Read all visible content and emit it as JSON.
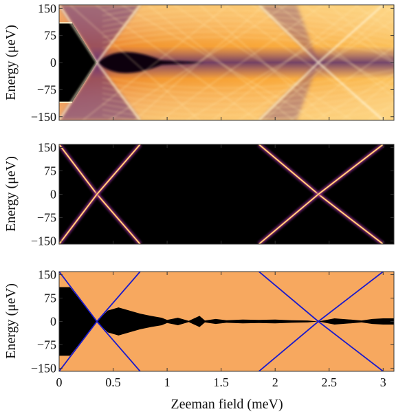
{
  "chart_data": [
    {
      "type": "heatmap",
      "panel": "top",
      "ylabel": "Energy (μeV)",
      "xlabel": "",
      "xlim": [
        0,
        3.1
      ],
      "ylim": [
        -160,
        160
      ],
      "yticks": [
        "150",
        "75",
        "0",
        "−75",
        "−150"
      ],
      "ytick_values": [
        150,
        75,
        0,
        -75,
        -150
      ],
      "xticks": [],
      "xtick_values": [
        0,
        0.5,
        1,
        1.5,
        2,
        2.5,
        3
      ],
      "colormap": [
        "#000000",
        "#3a1d66",
        "#8b3a8f",
        "#e0672a",
        "#fba035",
        "#fde8a8"
      ],
      "features": {
        "gap_edge_at_zero_field": 110,
        "gap_closing_fields": [
          0.35,
          2.4
        ],
        "crossing_lines": [
          {
            "from": [
              0.35,
              0
            ],
            "to": [
              0.75,
              160
            ]
          },
          {
            "from": [
              0.35,
              0
            ],
            "to": [
              0.75,
              -160
            ]
          },
          {
            "from": [
              0.0,
              160
            ],
            "to": [
              0.35,
              0
            ]
          },
          {
            "from": [
              0.0,
              -160
            ],
            "to": [
              0.35,
              0
            ]
          },
          {
            "from": [
              2.4,
              0
            ],
            "to": [
              3.0,
              160
            ]
          },
          {
            "from": [
              2.4,
              0
            ],
            "to": [
              3.0,
              -160
            ]
          },
          {
            "from": [
              1.85,
              160
            ],
            "to": [
              2.4,
              0
            ]
          },
          {
            "from": [
              1.85,
              -160
            ],
            "to": [
              2.4,
              0
            ]
          }
        ]
      }
    },
    {
      "type": "heatmap",
      "panel": "middle",
      "ylabel": "Energy (μeV)",
      "xlabel": "",
      "xlim": [
        0,
        3.1
      ],
      "ylim": [
        -160,
        160
      ],
      "yticks": [
        "150",
        "75",
        "0",
        "−75",
        "−150"
      ],
      "ytick_values": [
        150,
        75,
        0,
        -75,
        -150
      ],
      "xticks": [],
      "xtick_values": [
        0,
        0.5,
        1,
        1.5,
        2,
        2.5,
        3
      ],
      "colormap": [
        "#000000",
        "#7a2a8a",
        "#f08a3a",
        "#ffe6a0"
      ],
      "lines": [
        {
          "x": [
            0.0,
            0.35,
            0.75
          ],
          "y": [
            160,
            0,
            -160
          ]
        },
        {
          "x": [
            0.0,
            0.35,
            0.75
          ],
          "y": [
            -160,
            0,
            160
          ]
        },
        {
          "x": [
            1.85,
            2.4,
            3.0
          ],
          "y": [
            160,
            0,
            -160
          ]
        },
        {
          "x": [
            1.85,
            2.4,
            3.0
          ],
          "y": [
            -160,
            0,
            160
          ]
        }
      ]
    },
    {
      "type": "area",
      "panel": "bottom",
      "ylabel": "Energy (μeV)",
      "xlabel": "Zeeman field (meV)",
      "xlim": [
        0,
        3.1
      ],
      "ylim": [
        -160,
        160
      ],
      "yticks": [
        "150",
        "75",
        "0",
        "−75",
        "−150"
      ],
      "ytick_values": [
        150,
        75,
        0,
        -75,
        -150
      ],
      "xticks": [
        "0",
        "0.5",
        "1",
        "1.5",
        "2",
        "2.5",
        "3"
      ],
      "xtick_values": [
        0,
        0.5,
        1,
        1.5,
        2,
        2.5,
        3
      ],
      "background_color": "#f7a85f",
      "gap_color": "#000000",
      "line_color": "#1a1acc",
      "gap_region": {
        "x": [
          0.0,
          0.1,
          0.35,
          0.45,
          0.55,
          0.65,
          0.75,
          0.85,
          0.95,
          1.0,
          1.1,
          1.2,
          1.25,
          1.3,
          1.35,
          1.45,
          1.55,
          1.7,
          1.85,
          2.0,
          2.15,
          2.3,
          2.4,
          2.55,
          2.7,
          2.8,
          2.9,
          3.0,
          3.1
        ],
        "half_width": [
          110,
          110,
          0,
          35,
          45,
          35,
          25,
          18,
          12,
          5,
          12,
          2,
          10,
          18,
          3,
          8,
          4,
          6,
          5,
          6,
          4,
          3,
          0,
          10,
          6,
          3,
          8,
          10,
          10
        ]
      },
      "lines": [
        {
          "x": [
            0.0,
            0.35,
            0.75
          ],
          "y": [
            160,
            0,
            -160
          ]
        },
        {
          "x": [
            0.0,
            0.35,
            0.75
          ],
          "y": [
            -160,
            0,
            160
          ]
        },
        {
          "x": [
            1.85,
            2.4,
            3.0
          ],
          "y": [
            160,
            0,
            -160
          ]
        },
        {
          "x": [
            1.85,
            2.4,
            3.0
          ],
          "y": [
            -160,
            0,
            160
          ]
        }
      ]
    }
  ]
}
